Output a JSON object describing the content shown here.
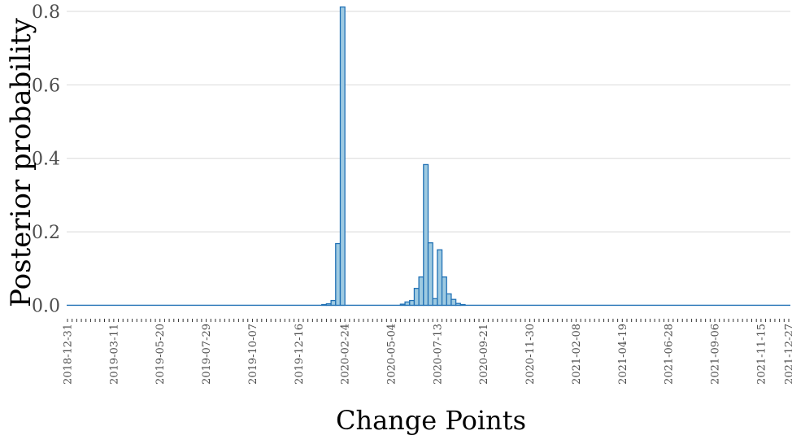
{
  "chart_data": {
    "type": "bar",
    "xlabel": "Change Points",
    "ylabel": "Posterior probability",
    "ylim": [
      -0.03,
      0.82
    ],
    "y_ticks": [
      0.0,
      0.2,
      0.4,
      0.6,
      0.8
    ],
    "y_tick_labels": [
      "0.0",
      "0.2",
      "0.4",
      "0.6",
      "0.8"
    ],
    "x_start": "2018-12-31",
    "x_end": "2021-12-27",
    "x_ticks": [
      "2018-12-31",
      "2019-03-11",
      "2019-05-20",
      "2019-07-29",
      "2019-10-07",
      "2019-12-16",
      "2020-02-24",
      "2020-05-04",
      "2020-07-13",
      "2020-09-21",
      "2020-11-30",
      "2021-02-08",
      "2021-04-19",
      "2021-06-28",
      "2021-09-06",
      "2021-11-15",
      "2021-12-27"
    ],
    "grid": true,
    "series": [
      {
        "color": "#9ecae1",
        "edge_color": "#2171b5",
        "points": [
          {
            "x": "2020-01-27",
            "y": 0.002
          },
          {
            "x": "2020-02-03",
            "y": 0.004
          },
          {
            "x": "2020-02-10",
            "y": 0.013
          },
          {
            "x": "2020-02-17",
            "y": 0.168
          },
          {
            "x": "2020-02-24",
            "y": 0.812
          },
          {
            "x": "2020-05-25",
            "y": 0.003
          },
          {
            "x": "2020-06-01",
            "y": 0.009
          },
          {
            "x": "2020-06-08",
            "y": 0.013
          },
          {
            "x": "2020-06-15",
            "y": 0.046
          },
          {
            "x": "2020-06-22",
            "y": 0.077
          },
          {
            "x": "2020-06-29",
            "y": 0.383
          },
          {
            "x": "2020-07-06",
            "y": 0.17
          },
          {
            "x": "2020-07-13",
            "y": 0.018
          },
          {
            "x": "2020-07-20",
            "y": 0.151
          },
          {
            "x": "2020-07-27",
            "y": 0.077
          },
          {
            "x": "2020-08-03",
            "y": 0.031
          },
          {
            "x": "2020-08-10",
            "y": 0.016
          },
          {
            "x": "2020-08-17",
            "y": 0.005
          },
          {
            "x": "2020-08-24",
            "y": 0.002
          }
        ]
      }
    ]
  }
}
